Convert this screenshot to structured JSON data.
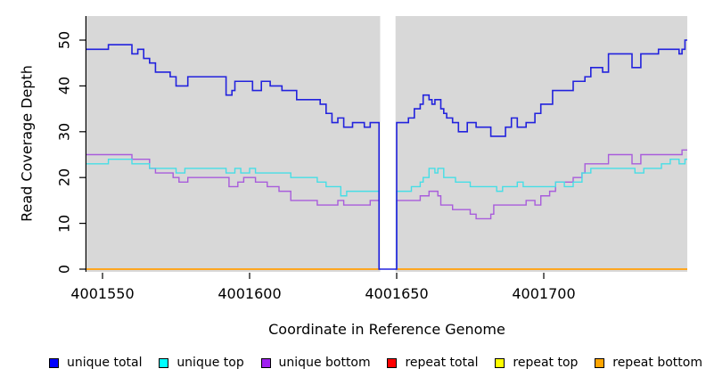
{
  "chart_data": {
    "type": "line",
    "subtype": "step-coverage-plot",
    "title": "",
    "xlabel": "Coordinate in Reference Genome",
    "ylabel": "Read Coverage Depth",
    "x_ticks": [
      4001550,
      4001600,
      4001650,
      4001700
    ],
    "y_ticks": [
      0,
      10,
      20,
      30,
      40,
      50
    ],
    "xlim": [
      4001544.5,
      4001749
    ],
    "ylim": [
      -0.3,
      55.5
    ],
    "grid": "off",
    "plot_background": "#d8d8d8",
    "gap_region": {
      "x_start": 4001644,
      "x_end": 4001650,
      "fill": "#ffffff",
      "note": "white band where coverage drops to 0"
    },
    "legend_position": "bottom",
    "series": [
      {
        "name": "unique total",
        "color_line": "#2222dd",
        "color_legend": "#0000ff",
        "points": [
          [
            4001544.5,
            48
          ],
          [
            4001552,
            49
          ],
          [
            4001560,
            47
          ],
          [
            4001562,
            48
          ],
          [
            4001564,
            46
          ],
          [
            4001566,
            45
          ],
          [
            4001568,
            43
          ],
          [
            4001573,
            42
          ],
          [
            4001575,
            40
          ],
          [
            4001579,
            42
          ],
          [
            4001592,
            38
          ],
          [
            4001594,
            39
          ],
          [
            4001595,
            41
          ],
          [
            4001601,
            39
          ],
          [
            4001604,
            41
          ],
          [
            4001607,
            40
          ],
          [
            4001611,
            39
          ],
          [
            4001616,
            37
          ],
          [
            4001624,
            36
          ],
          [
            4001626,
            34
          ],
          [
            4001628,
            32
          ],
          [
            4001630,
            33
          ],
          [
            4001632,
            31
          ],
          [
            4001635,
            32
          ],
          [
            4001639,
            31
          ],
          [
            4001641,
            32
          ],
          [
            4001644,
            0
          ],
          [
            4001650,
            32
          ],
          [
            4001654,
            33
          ],
          [
            4001656,
            35
          ],
          [
            4001658,
            36
          ],
          [
            4001659,
            38
          ],
          [
            4001661,
            37
          ],
          [
            4001662,
            36
          ],
          [
            4001663,
            37
          ],
          [
            4001665,
            35
          ],
          [
            4001666,
            34
          ],
          [
            4001667,
            33
          ],
          [
            4001669,
            32
          ],
          [
            4001671,
            30
          ],
          [
            4001674,
            32
          ],
          [
            4001677,
            31
          ],
          [
            4001682,
            29
          ],
          [
            4001687,
            31
          ],
          [
            4001689,
            33
          ],
          [
            4001691,
            31
          ],
          [
            4001694,
            32
          ],
          [
            4001697,
            34
          ],
          [
            4001699,
            36
          ],
          [
            4001703,
            39
          ],
          [
            4001710,
            41
          ],
          [
            4001714,
            42
          ],
          [
            4001716,
            44
          ],
          [
            4001720,
            43
          ],
          [
            4001722,
            47
          ],
          [
            4001730,
            44
          ],
          [
            4001733,
            47
          ],
          [
            4001739,
            48
          ],
          [
            4001746,
            47
          ],
          [
            4001747,
            48
          ],
          [
            4001748,
            50
          ]
        ]
      },
      {
        "name": "unique top",
        "color_line": "#45dee6",
        "color_legend": "#00ffff",
        "points": [
          [
            4001544.5,
            23
          ],
          [
            4001552,
            24
          ],
          [
            4001560,
            23
          ],
          [
            4001566,
            22
          ],
          [
            4001575,
            21
          ],
          [
            4001578,
            22
          ],
          [
            4001592,
            21
          ],
          [
            4001595,
            22
          ],
          [
            4001597,
            21
          ],
          [
            4001600,
            22
          ],
          [
            4001602,
            21
          ],
          [
            4001614,
            20
          ],
          [
            4001623,
            19
          ],
          [
            4001626,
            18
          ],
          [
            4001631,
            16
          ],
          [
            4001633,
            17
          ],
          [
            4001644,
            0
          ],
          [
            4001650,
            17
          ],
          [
            4001655,
            18
          ],
          [
            4001658,
            19
          ],
          [
            4001659,
            20
          ],
          [
            4001661,
            22
          ],
          [
            4001663,
            21
          ],
          [
            4001664,
            22
          ],
          [
            4001666,
            20
          ],
          [
            4001670,
            19
          ],
          [
            4001675,
            18
          ],
          [
            4001684,
            17
          ],
          [
            4001686,
            18
          ],
          [
            4001691,
            19
          ],
          [
            4001693,
            18
          ],
          [
            4001704,
            19
          ],
          [
            4001707,
            18
          ],
          [
            4001710,
            19
          ],
          [
            4001713,
            21
          ],
          [
            4001716,
            22
          ],
          [
            4001731,
            21
          ],
          [
            4001734,
            22
          ],
          [
            4001740,
            23
          ],
          [
            4001743,
            24
          ],
          [
            4001746,
            23
          ],
          [
            4001748,
            24
          ]
        ]
      },
      {
        "name": "unique bottom",
        "color_line": "#a85cdb",
        "color_legend": "#a020f0",
        "points": [
          [
            4001544.5,
            25
          ],
          [
            4001560,
            24
          ],
          [
            4001566,
            22
          ],
          [
            4001568,
            21
          ],
          [
            4001574,
            20
          ],
          [
            4001576,
            19
          ],
          [
            4001579,
            20
          ],
          [
            4001593,
            18
          ],
          [
            4001596,
            19
          ],
          [
            4001598,
            20
          ],
          [
            4001602,
            19
          ],
          [
            4001606,
            18
          ],
          [
            4001610,
            17
          ],
          [
            4001614,
            15
          ],
          [
            4001623,
            14
          ],
          [
            4001630,
            15
          ],
          [
            4001632,
            14
          ],
          [
            4001641,
            15
          ],
          [
            4001644,
            0
          ],
          [
            4001650,
            15
          ],
          [
            4001658,
            16
          ],
          [
            4001661,
            17
          ],
          [
            4001664,
            16
          ],
          [
            4001665,
            14
          ],
          [
            4001669,
            13
          ],
          [
            4001675,
            12
          ],
          [
            4001677,
            11
          ],
          [
            4001682,
            12
          ],
          [
            4001683,
            14
          ],
          [
            4001694,
            15
          ],
          [
            4001697,
            14
          ],
          [
            4001699,
            16
          ],
          [
            4001702,
            17
          ],
          [
            4001704,
            19
          ],
          [
            4001710,
            20
          ],
          [
            4001713,
            21
          ],
          [
            4001714,
            23
          ],
          [
            4001722,
            25
          ],
          [
            4001730,
            23
          ],
          [
            4001733,
            25
          ],
          [
            4001747,
            26
          ]
        ]
      },
      {
        "name": "repeat total",
        "color_line": "#ff0000",
        "color_legend": "#ff0000",
        "points": [
          [
            4001544.5,
            0
          ]
        ]
      },
      {
        "name": "repeat top",
        "color_line": "#ffff00",
        "color_legend": "#ffff00",
        "points": [
          [
            4001544.5,
            0
          ]
        ]
      },
      {
        "name": "repeat bottom",
        "color_line": "#ffa019",
        "color_legend": "#ffa500",
        "points": [
          [
            4001544.5,
            0
          ]
        ]
      }
    ]
  }
}
